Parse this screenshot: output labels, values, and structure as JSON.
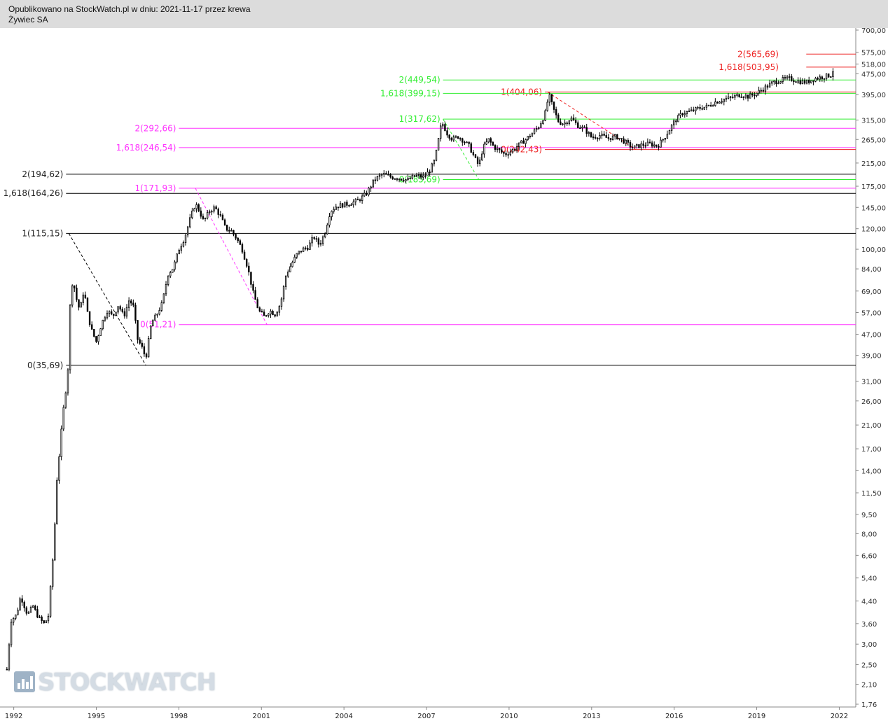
{
  "header": {
    "line1": "Opublikowano na StockWatch.pl w dniu: 2021-11-17 przez krewa",
    "line2": "Żywiec SA"
  },
  "logo": {
    "text": "STOCKWATCH"
  },
  "colors": {
    "black": "#000000",
    "magenta": "#ff33ff",
    "green": "#33ee33",
    "red": "#ee2222",
    "axis": "#888888"
  },
  "chart_data": {
    "type": "candlestick",
    "y_scale": "log",
    "ylim": [
      1.76,
      700
    ],
    "xlim": [
      1991.5,
      2022.6
    ],
    "y_ticks": [
      "700,00",
      "575,00",
      "518,00",
      "475,00",
      "395,00",
      "315,00",
      "265,00",
      "215,00",
      "175,00",
      "145,00",
      "120,00",
      "100,00",
      "84,00",
      "69,00",
      "57,00",
      "47,00",
      "39,00",
      "31,00",
      "26,00",
      "21,00",
      "17,00",
      "14,00",
      "11,50",
      "9,50",
      "8,00",
      "6,60",
      "5,40",
      "4,40",
      "3,60",
      "3,00",
      "2,50",
      "2,10",
      "1,76"
    ],
    "x_ticks": [
      "1992",
      "1995",
      "1998",
      "2001",
      "2004",
      "2007",
      "2010",
      "2013",
      "2016",
      "2019",
      "2022"
    ],
    "fib_levels": [
      {
        "label": "2(565,69)",
        "value": 565.69,
        "color": "red",
        "x_start": 2020.8,
        "x_end": 2022.6,
        "label_right": 2019.8
      },
      {
        "label": "1,618(503,95)",
        "value": 503.95,
        "color": "red",
        "x_start": 2020.8,
        "x_end": 2022.6,
        "label_right": 2019.8
      },
      {
        "label": "2(449,54)",
        "value": 449.54,
        "color": "green",
        "x_start": 2007.6,
        "x_end": 2022.6,
        "label_right": 2007.5
      },
      {
        "label": "1(404,06)",
        "value": 404.06,
        "color": "red",
        "x_start": 2011.3,
        "x_end": 2022.6,
        "label_right": 2011.2
      },
      {
        "label": "1,618(399,15)",
        "value": 399.15,
        "color": "green",
        "x_start": 2007.6,
        "x_end": 2022.6,
        "label_right": 2007.5
      },
      {
        "label": "1(317,62)",
        "value": 317.62,
        "color": "green",
        "x_start": 2007.6,
        "x_end": 2022.6,
        "label_right": 2007.5
      },
      {
        "label": "2(292,66)",
        "value": 292.66,
        "color": "magenta",
        "x_start": 1998.0,
        "x_end": 2022.6,
        "label_right": 1997.9
      },
      {
        "label": "1,618(246,54)",
        "value": 246.54,
        "color": "magenta",
        "x_start": 1998.0,
        "x_end": 2022.6,
        "label_right": 1997.9
      },
      {
        "label": "0(242,43)",
        "value": 242.43,
        "color": "red",
        "x_start": 2011.3,
        "x_end": 2022.6,
        "label_right": 2011.2
      },
      {
        "label": "2(194,62)",
        "value": 194.62,
        "color": "black",
        "x_start": 1993.9,
        "x_end": 2022.6,
        "label_right": 1993.8
      },
      {
        "label": "0(185,69)",
        "value": 185.69,
        "color": "green",
        "x_start": 2007.6,
        "x_end": 2022.6,
        "label_right": 2007.5
      },
      {
        "label": "1(171,93)",
        "value": 171.93,
        "color": "magenta",
        "x_start": 1998.0,
        "x_end": 2022.6,
        "label_right": 1997.9
      },
      {
        "label": "1,618(164,26)",
        "value": 164.26,
        "color": "black",
        "x_start": 1993.9,
        "x_end": 2022.6,
        "label_right": 1993.8
      },
      {
        "label": "1(115,15)",
        "value": 115.15,
        "color": "black",
        "x_start": 1993.9,
        "x_end": 2022.6,
        "label_right": 1993.8
      },
      {
        "label": "0(51,21)",
        "value": 51.21,
        "color": "magenta",
        "x_start": 1998.0,
        "x_end": 2022.6,
        "label_right": 1997.9
      },
      {
        "label": "0(35,69)",
        "value": 35.69,
        "color": "black",
        "x_start": 1993.9,
        "x_end": 2022.6,
        "label_right": 1993.8
      }
    ],
    "swing_lines": [
      {
        "color": "black",
        "from": [
          1994.0,
          115.15
        ],
        "to": [
          1996.8,
          35.69
        ]
      },
      {
        "color": "magenta",
        "from": [
          1998.6,
          171.93
        ],
        "to": [
          2001.2,
          51.21
        ]
      },
      {
        "color": "green",
        "from": [
          2007.6,
          317.62
        ],
        "to": [
          2008.9,
          185.69
        ]
      },
      {
        "color": "red",
        "from": [
          2011.4,
          404.06
        ],
        "to": [
          2014.6,
          242.43
        ]
      }
    ],
    "price_path": [
      [
        1991.75,
        2.4
      ],
      [
        1991.9,
        3.7
      ],
      [
        1992.1,
        3.9
      ],
      [
        1992.25,
        4.6
      ],
      [
        1992.5,
        3.9
      ],
      [
        1992.7,
        4.2
      ],
      [
        1992.9,
        3.8
      ],
      [
        1993.1,
        3.6
      ],
      [
        1993.25,
        3.8
      ],
      [
        1993.4,
        6.0
      ],
      [
        1993.5,
        9.0
      ],
      [
        1993.6,
        15.0
      ],
      [
        1993.7,
        17.0
      ],
      [
        1993.75,
        22.0
      ],
      [
        1993.85,
        26.0
      ],
      [
        1993.95,
        33.0
      ],
      [
        1994.0,
        38.0
      ],
      [
        1994.05,
        62.0
      ],
      [
        1994.15,
        78.0
      ],
      [
        1994.25,
        66.0
      ],
      [
        1994.4,
        58.0
      ],
      [
        1994.55,
        70.0
      ],
      [
        1994.7,
        55.0
      ],
      [
        1994.85,
        48.0
      ],
      [
        1995.0,
        44.0
      ],
      [
        1995.2,
        52.0
      ],
      [
        1995.4,
        58.0
      ],
      [
        1995.6,
        55.0
      ],
      [
        1995.8,
        61.0
      ],
      [
        1996.0,
        55.0
      ],
      [
        1996.2,
        64.0
      ],
      [
        1996.35,
        60.0
      ],
      [
        1996.5,
        45.0
      ],
      [
        1996.65,
        42.0
      ],
      [
        1996.8,
        38.0
      ],
      [
        1997.0,
        52.0
      ],
      [
        1997.2,
        56.0
      ],
      [
        1997.4,
        62.0
      ],
      [
        1997.6,
        80.0
      ],
      [
        1997.8,
        85.0
      ],
      [
        1998.0,
        100.0
      ],
      [
        1998.2,
        110.0
      ],
      [
        1998.4,
        130.0
      ],
      [
        1998.6,
        150.0
      ],
      [
        1998.75,
        140.0
      ],
      [
        1998.9,
        128.0
      ],
      [
        1999.1,
        140.0
      ],
      [
        1999.3,
        145.0
      ],
      [
        1999.5,
        135.0
      ],
      [
        1999.7,
        120.0
      ],
      [
        1999.9,
        118.0
      ],
      [
        2000.1,
        110.0
      ],
      [
        2000.3,
        100.0
      ],
      [
        2000.5,
        85.0
      ],
      [
        2000.7,
        68.0
      ],
      [
        2000.9,
        58.0
      ],
      [
        2001.1,
        55.0
      ],
      [
        2001.3,
        58.0
      ],
      [
        2001.5,
        56.0
      ],
      [
        2001.7,
        62.0
      ],
      [
        2001.9,
        80.0
      ],
      [
        2002.1,
        88.0
      ],
      [
        2002.3,
        96.0
      ],
      [
        2002.5,
        100.0
      ],
      [
        2002.7,
        102.0
      ],
      [
        2002.9,
        112.0
      ],
      [
        2003.1,
        104.0
      ],
      [
        2003.3,
        115.0
      ],
      [
        2003.5,
        140.0
      ],
      [
        2003.7,
        146.0
      ],
      [
        2003.9,
        148.0
      ],
      [
        2004.2,
        150.0
      ],
      [
        2004.5,
        154.0
      ],
      [
        2004.8,
        163.0
      ],
      [
        2005.1,
        185.0
      ],
      [
        2005.4,
        195.0
      ],
      [
        2005.7,
        190.0
      ],
      [
        2006.0,
        188.0
      ],
      [
        2006.3,
        185.0
      ],
      [
        2006.6,
        192.0
      ],
      [
        2006.9,
        190.0
      ],
      [
        2007.1,
        200.0
      ],
      [
        2007.3,
        220.0
      ],
      [
        2007.55,
        310.0
      ],
      [
        2007.75,
        280.0
      ],
      [
        2007.95,
        265.0
      ],
      [
        2008.15,
        272.0
      ],
      [
        2008.35,
        262.0
      ],
      [
        2008.55,
        250.0
      ],
      [
        2008.75,
        225.0
      ],
      [
        2008.9,
        210.0
      ],
      [
        2009.05,
        245.0
      ],
      [
        2009.25,
        265.0
      ],
      [
        2009.45,
        248.0
      ],
      [
        2009.65,
        240.0
      ],
      [
        2009.85,
        232.0
      ],
      [
        2010.1,
        240.0
      ],
      [
        2010.35,
        252.0
      ],
      [
        2010.6,
        265.0
      ],
      [
        2010.85,
        280.0
      ],
      [
        2011.1,
        300.0
      ],
      [
        2011.3,
        330.0
      ],
      [
        2011.45,
        395.0
      ],
      [
        2011.6,
        350.0
      ],
      [
        2011.8,
        310.0
      ],
      [
        2012.0,
        305.0
      ],
      [
        2012.25,
        320.0
      ],
      [
        2012.5,
        300.0
      ],
      [
        2012.75,
        290.0
      ],
      [
        2013.0,
        270.0
      ],
      [
        2013.3,
        275.0
      ],
      [
        2013.6,
        268.0
      ],
      [
        2013.9,
        272.0
      ],
      [
        2014.2,
        260.0
      ],
      [
        2014.5,
        246.0
      ],
      [
        2014.8,
        252.0
      ],
      [
        2015.1,
        255.0
      ],
      [
        2015.4,
        250.0
      ],
      [
        2015.7,
        275.0
      ],
      [
        2016.0,
        310.0
      ],
      [
        2016.3,
        335.0
      ],
      [
        2016.6,
        340.0
      ],
      [
        2016.9,
        350.0
      ],
      [
        2017.2,
        355.0
      ],
      [
        2017.5,
        370.0
      ],
      [
        2017.8,
        378.0
      ],
      [
        2018.1,
        385.0
      ],
      [
        2018.4,
        395.0
      ],
      [
        2018.7,
        388.0
      ],
      [
        2019.0,
        400.0
      ],
      [
        2019.3,
        420.0
      ],
      [
        2019.6,
        440.0
      ],
      [
        2019.9,
        450.0
      ],
      [
        2020.2,
        455.0
      ],
      [
        2020.5,
        445.0
      ],
      [
        2020.8,
        440.0
      ],
      [
        2021.1,
        455.0
      ],
      [
        2021.4,
        462.0
      ],
      [
        2021.7,
        470.0
      ],
      [
        2021.85,
        510.0
      ]
    ]
  }
}
